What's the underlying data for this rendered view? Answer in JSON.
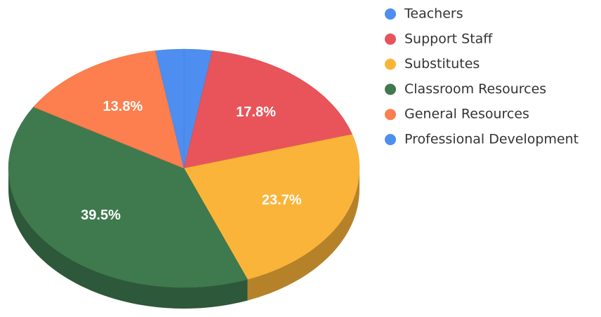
{
  "chart_data": {
    "type": "pie3d",
    "categories": [
      "Teachers",
      "Support Staff",
      "Substitutes",
      "Classroom Resources",
      "General Resources",
      "Professional Development"
    ],
    "values": [
      2.6,
      17.8,
      23.7,
      39.5,
      13.8,
      2.6
    ],
    "value_labels": [
      null,
      "17.8%",
      "23.7%",
      "39.5%",
      "13.8%",
      null
    ],
    "colors": [
      "#4d8ef0",
      "#e8545a",
      "#fbb43a",
      "#3f7a4f",
      "#fd7e4e",
      "#4d8ef0"
    ],
    "legend": "right"
  }
}
